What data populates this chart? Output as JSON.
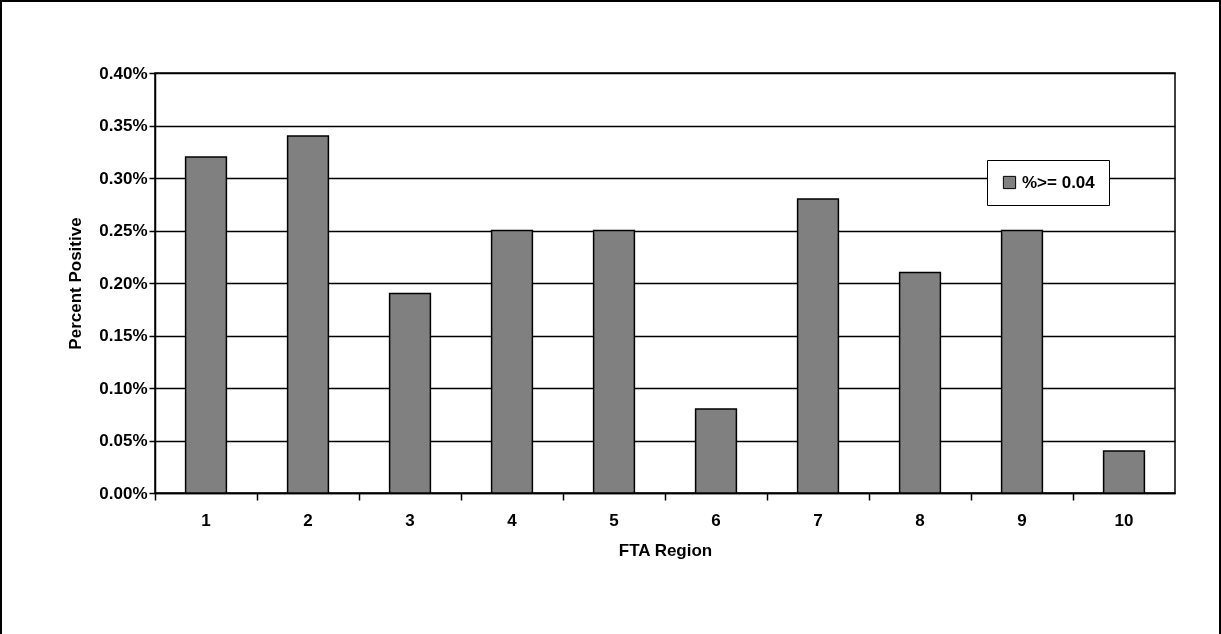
{
  "chart_data": {
    "type": "bar",
    "xlabel": "FTA Region",
    "ylabel": "Percent Positive",
    "categories": [
      "1",
      "2",
      "3",
      "4",
      "5",
      "6",
      "7",
      "8",
      "9",
      "10"
    ],
    "series": [
      {
        "name": "%>= 0.04",
        "color": "#808080",
        "values": [
          0.32,
          0.34,
          0.19,
          0.25,
          0.25,
          0.08,
          0.28,
          0.21,
          0.25,
          0.04
        ]
      }
    ],
    "ylim": [
      0,
      0.4
    ],
    "yticks": [
      {
        "value": 0,
        "label": "0.00%"
      },
      {
        "value": 0.05,
        "label": "0.05%"
      },
      {
        "value": 0.1,
        "label": "0.10%"
      },
      {
        "value": 0.15,
        "label": "0.15%"
      },
      {
        "value": 0.2,
        "label": "0.20%"
      },
      {
        "value": 0.25,
        "label": "0.25%"
      },
      {
        "value": 0.3,
        "label": "0.30%"
      },
      {
        "value": 0.35,
        "label": "0.35%"
      },
      {
        "value": 0.4,
        "label": "0.40%"
      }
    ],
    "grid": "y",
    "legend": "top right"
  }
}
